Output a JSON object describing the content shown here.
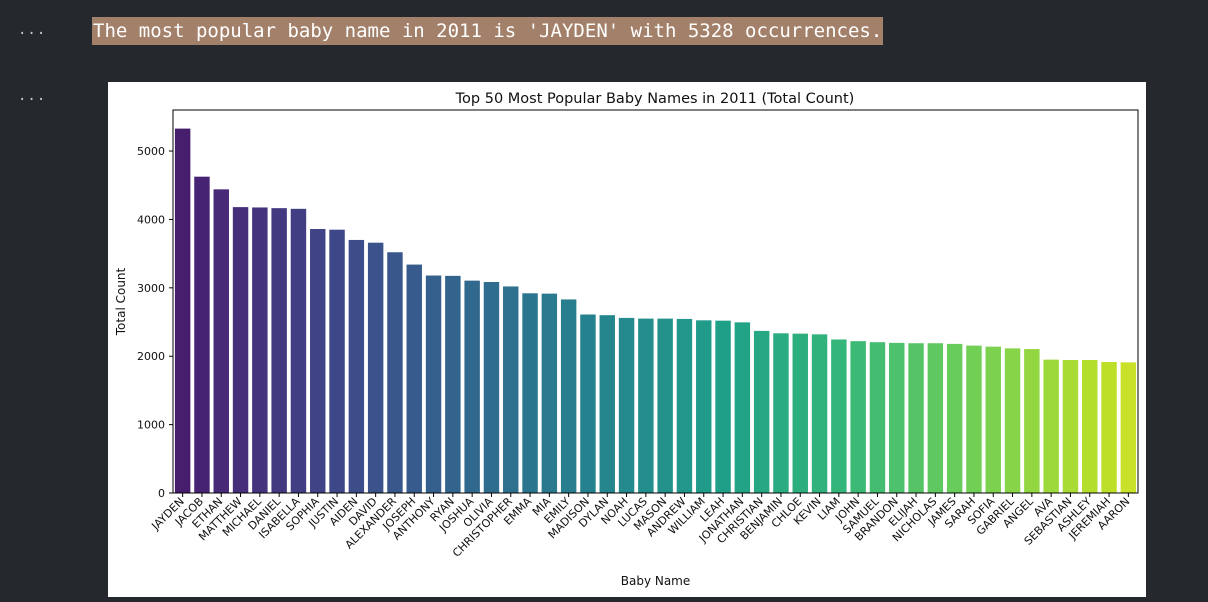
{
  "cells": {
    "output_prompt": "...",
    "stdout": "The most popular baby name in 2011 is 'JAYDEN' with 5328 occurrences."
  },
  "chart_data": {
    "type": "bar",
    "title": "Top 50 Most Popular Baby Names in 2011 (Total Count)",
    "xlabel": "Baby Name",
    "ylabel": "Total Count",
    "ylim": [
      0,
      5600
    ],
    "yticks": [
      0,
      1000,
      2000,
      3000,
      4000,
      5000
    ],
    "colormap": "viridis",
    "grid": false,
    "categories": [
      "JAYDEN",
      "JACOB",
      "ETHAN",
      "MATTHEW",
      "MICHAEL",
      "DANIEL",
      "ISABELLA",
      "SOPHIA",
      "JUSTIN",
      "AIDEN",
      "DAVID",
      "ALEXANDER",
      "JOSEPH",
      "ANTHONY",
      "RYAN",
      "JOSHUA",
      "OLIVIA",
      "CHRISTOPHER",
      "EMMA",
      "MIA",
      "EMILY",
      "MADISON",
      "DYLAN",
      "NOAH",
      "LUCAS",
      "MASON",
      "ANDREW",
      "WILLIAM",
      "LEAH",
      "JONATHAN",
      "CHRISTIAN",
      "BENJAMIN",
      "CHLOE",
      "KEVIN",
      "LIAM",
      "JOHN",
      "SAMUEL",
      "BRANDON",
      "ELIJAH",
      "NICHOLAS",
      "JAMES",
      "SARAH",
      "SOFIA",
      "GABRIEL",
      "ANGEL",
      "AVA",
      "SEBASTIAN",
      "ASHLEY",
      "JEREMIAH",
      "AARON"
    ],
    "values": [
      5328,
      4625,
      4440,
      4180,
      4175,
      4165,
      4155,
      3860,
      3850,
      3700,
      3660,
      3520,
      3340,
      3180,
      3175,
      3105,
      3085,
      3020,
      2920,
      2915,
      2830,
      2610,
      2600,
      2560,
      2550,
      2550,
      2545,
      2525,
      2520,
      2495,
      2370,
      2335,
      2330,
      2320,
      2245,
      2220,
      2205,
      2195,
      2190,
      2190,
      2180,
      2155,
      2140,
      2115,
      2105,
      1950,
      1945,
      1945,
      1915,
      1910
    ]
  }
}
